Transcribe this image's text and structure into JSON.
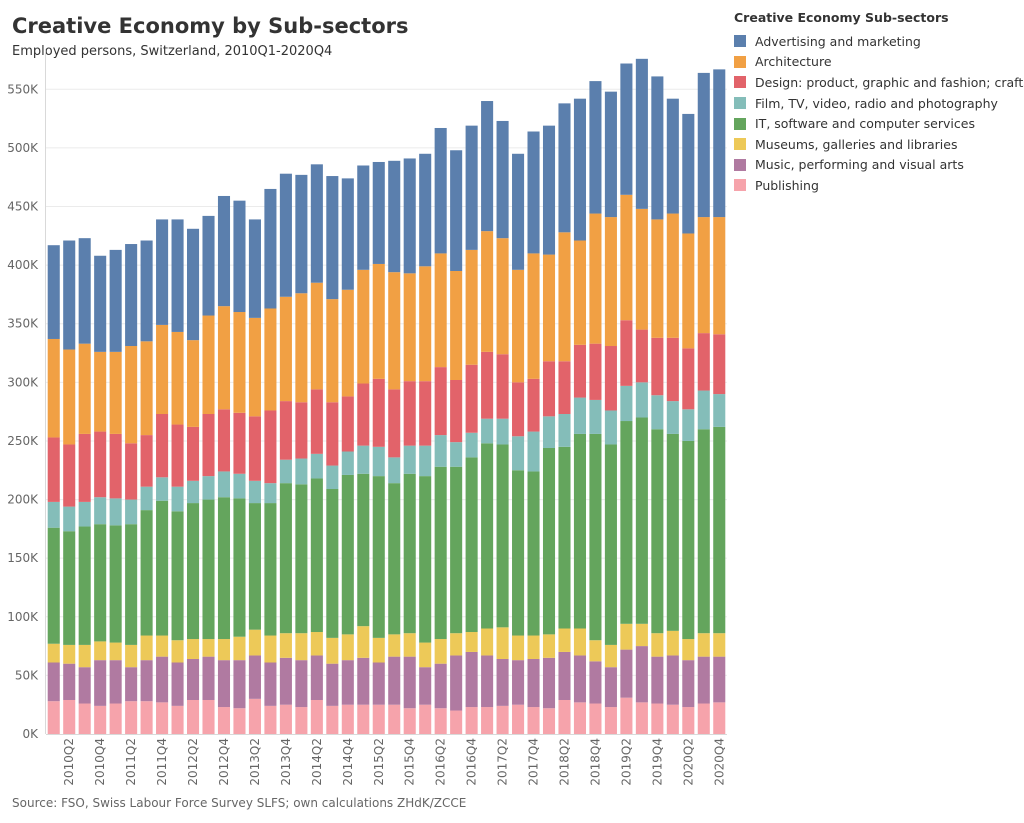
{
  "title": "Creative Economy by Sub-sectors",
  "subtitle": "Employed persons, Switzerland, 2010Q1-2020Q4",
  "source": "Source: FSO, Swiss Labour Force Survey SLFS; own calculations ZHdK/ZCCE",
  "legend": {
    "title": "Creative Economy Sub-sectors",
    "items": [
      {
        "label": "Advertising and marketing",
        "color": "#5b7fad"
      },
      {
        "label": "Architecture",
        "color": "#f1a044"
      },
      {
        "label": "Design: product, graphic and fashion; crafts",
        "color": "#e2636a"
      },
      {
        "label": "Film, TV, video, radio and photography",
        "color": "#84bdb9"
      },
      {
        "label": "IT, software and computer services",
        "color": "#64a55d"
      },
      {
        "label": "Museums, galleries and libraries",
        "color": "#edc958"
      },
      {
        "label": "Music, performing and visual arts",
        "color": "#b07aa1"
      },
      {
        "label": "Publishing",
        "color": "#f6a3ab"
      }
    ]
  },
  "chart_data": {
    "type": "bar",
    "stacked": true,
    "ylim": [
      0,
      575000
    ],
    "yticks": [
      0,
      50000,
      100000,
      150000,
      200000,
      250000,
      300000,
      350000,
      400000,
      450000,
      500000,
      550000
    ],
    "ytick_labels": [
      "0K",
      "50K",
      "100K",
      "150K",
      "200K",
      "250K",
      "300K",
      "350K",
      "400K",
      "450K",
      "500K",
      "550K"
    ],
    "xtick_labels": [
      "2010Q2",
      "2010Q4",
      "2011Q2",
      "2011Q4",
      "2012Q2",
      "2012Q4",
      "2013Q2",
      "2013Q4",
      "2014Q2",
      "2014Q4",
      "2015Q2",
      "2015Q4",
      "2016Q2",
      "2016Q4",
      "2017Q2",
      "2017Q4",
      "2018Q2",
      "2018Q4",
      "2019Q2",
      "2019Q4",
      "2020Q2",
      "2020Q4"
    ],
    "grid": true,
    "legend_position": "top-right",
    "categories": [
      "2010Q1",
      "2010Q2",
      "2010Q3",
      "2010Q4",
      "2011Q1",
      "2011Q2",
      "2011Q3",
      "2011Q4",
      "2012Q1",
      "2012Q2",
      "2012Q3",
      "2012Q4",
      "2013Q1",
      "2013Q2",
      "2013Q3",
      "2013Q4",
      "2014Q1",
      "2014Q2",
      "2014Q3",
      "2014Q4",
      "2015Q1",
      "2015Q2",
      "2015Q3",
      "2015Q4",
      "2016Q1",
      "2016Q2",
      "2016Q3",
      "2016Q4",
      "2017Q1",
      "2017Q2",
      "2017Q3",
      "2017Q4",
      "2018Q1",
      "2018Q2",
      "2018Q3",
      "2018Q4",
      "2019Q1",
      "2019Q2",
      "2019Q3",
      "2019Q4",
      "2020Q1",
      "2020Q2",
      "2020Q3",
      "2020Q4"
    ],
    "series": [
      {
        "name": "Publishing",
        "values": [
          28000,
          29000,
          26000,
          24000,
          26000,
          28000,
          28000,
          27000,
          24000,
          29000,
          29000,
          23000,
          22000,
          30000,
          24000,
          25000,
          23000,
          29000,
          24000,
          25000,
          25000,
          25000,
          25000,
          22000,
          25000,
          22000,
          20000,
          23000,
          23000,
          24000,
          25000,
          23000,
          22000,
          29000,
          27000,
          26000,
          23000,
          31000,
          27000,
          26000,
          25000,
          23000,
          26000,
          27000
        ]
      },
      {
        "name": "Music, performing and visual arts",
        "values": [
          33000,
          31000,
          31000,
          39000,
          37000,
          29000,
          35000,
          39000,
          37000,
          35000,
          37000,
          40000,
          41000,
          37000,
          37000,
          40000,
          40000,
          38000,
          36000,
          38000,
          40000,
          36000,
          41000,
          44000,
          32000,
          38000,
          47000,
          47000,
          44000,
          40000,
          38000,
          41000,
          43000,
          41000,
          40000,
          36000,
          34000,
          41000,
          48000,
          40000,
          42000,
          40000,
          40000,
          39000
        ]
      },
      {
        "name": "Museums, galleries and libraries",
        "values": [
          16000,
          16000,
          19000,
          16000,
          15000,
          19000,
          21000,
          18000,
          19000,
          17000,
          15000,
          18000,
          20000,
          22000,
          23000,
          21000,
          23000,
          20000,
          22000,
          22000,
          27000,
          21000,
          19000,
          20000,
          21000,
          21000,
          19000,
          17000,
          23000,
          27000,
          21000,
          20000,
          20000,
          20000,
          23000,
          18000,
          19000,
          22000,
          19000,
          20000,
          21000,
          18000,
          20000,
          20000
        ]
      },
      {
        "name": "IT, software and computer services",
        "values": [
          99000,
          97000,
          101000,
          100000,
          100000,
          103000,
          107000,
          115000,
          110000,
          116000,
          119000,
          121000,
          118000,
          108000,
          113000,
          128000,
          127000,
          131000,
          127000,
          136000,
          130000,
          138000,
          129000,
          136000,
          142000,
          147000,
          142000,
          149000,
          158000,
          156000,
          141000,
          140000,
          159000,
          155000,
          166000,
          176000,
          171000,
          173000,
          176000,
          174000,
          168000,
          169000,
          174000,
          176000
        ]
      },
      {
        "name": "Film, TV, video, radio and photography",
        "values": [
          22000,
          21000,
          21000,
          23000,
          23000,
          21000,
          20000,
          20000,
          21000,
          19000,
          20000,
          22000,
          21000,
          19000,
          17000,
          20000,
          22000,
          21000,
          20000,
          20000,
          24000,
          25000,
          22000,
          24000,
          26000,
          27000,
          21000,
          21000,
          21000,
          22000,
          29000,
          34000,
          27000,
          28000,
          31000,
          29000,
          29000,
          30000,
          30000,
          29000,
          28000,
          27000,
          33000,
          28000
        ]
      },
      {
        "name": "Design: product, graphic and fashion; crafts",
        "values": [
          55000,
          53000,
          58000,
          56000,
          55000,
          48000,
          44000,
          54000,
          53000,
          46000,
          53000,
          53000,
          52000,
          55000,
          62000,
          50000,
          48000,
          55000,
          54000,
          47000,
          53000,
          58000,
          58000,
          55000,
          55000,
          58000,
          53000,
          58000,
          57000,
          55000,
          46000,
          45000,
          47000,
          45000,
          45000,
          48000,
          55000,
          56000,
          45000,
          49000,
          54000,
          52000,
          49000,
          51000
        ]
      },
      {
        "name": "Architecture",
        "values": [
          84000,
          81000,
          77000,
          68000,
          70000,
          83000,
          80000,
          76000,
          79000,
          74000,
          84000,
          88000,
          86000,
          84000,
          87000,
          89000,
          93000,
          91000,
          88000,
          91000,
          97000,
          98000,
          100000,
          92000,
          98000,
          97000,
          93000,
          98000,
          103000,
          99000,
          96000,
          107000,
          91000,
          110000,
          89000,
          111000,
          110000,
          107000,
          103000,
          101000,
          106000,
          98000,
          99000,
          100000
        ]
      },
      {
        "name": "Advertising and marketing",
        "values": [
          80000,
          93000,
          90000,
          82000,
          87000,
          87000,
          86000,
          90000,
          96000,
          95000,
          85000,
          94000,
          95000,
          84000,
          102000,
          105000,
          101000,
          101000,
          105000,
          95000,
          89000,
          87000,
          95000,
          98000,
          96000,
          107000,
          103000,
          106000,
          111000,
          100000,
          99000,
          104000,
          110000,
          110000,
          121000,
          113000,
          107000,
          112000,
          128000,
          122000,
          98000,
          102000,
          123000,
          126000
        ]
      }
    ]
  }
}
